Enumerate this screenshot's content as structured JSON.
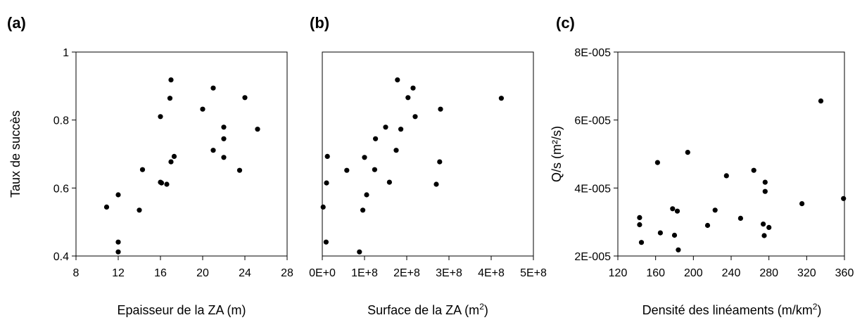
{
  "chart_data": [
    {
      "type": "scatter",
      "panel_label": "(a)",
      "xlabel": "Epaisseur de la ZA (m)",
      "ylabel": "Taux de succès",
      "xlim": [
        8,
        28
      ],
      "ylim": [
        0.4,
        1.0
      ],
      "xticks": [
        "8",
        "12",
        "16",
        "20",
        "24",
        "28"
      ],
      "yticks": [
        "0.4",
        "0.6",
        "0.8",
        "1"
      ],
      "grid": false,
      "points": [
        {
          "x": 10.9,
          "y": 0.544
        },
        {
          "x": 12.0,
          "y": 0.58
        },
        {
          "x": 12.0,
          "y": 0.441
        },
        {
          "x": 12.0,
          "y": 0.412
        },
        {
          "x": 14.0,
          "y": 0.535
        },
        {
          "x": 14.3,
          "y": 0.654
        },
        {
          "x": 16.0,
          "y": 0.81
        },
        {
          "x": 16.0,
          "y": 0.617
        },
        {
          "x": 16.1,
          "y": 0.615
        },
        {
          "x": 16.6,
          "y": 0.611
        },
        {
          "x": 16.9,
          "y": 0.864
        },
        {
          "x": 17.0,
          "y": 0.918
        },
        {
          "x": 17.0,
          "y": 0.677
        },
        {
          "x": 17.3,
          "y": 0.693
        },
        {
          "x": 20.0,
          "y": 0.832
        },
        {
          "x": 21.0,
          "y": 0.894
        },
        {
          "x": 21.0,
          "y": 0.711
        },
        {
          "x": 22.0,
          "y": 0.779
        },
        {
          "x": 22.0,
          "y": 0.745
        },
        {
          "x": 22.0,
          "y": 0.69
        },
        {
          "x": 23.5,
          "y": 0.652
        },
        {
          "x": 24.0,
          "y": 0.866
        },
        {
          "x": 25.2,
          "y": 0.773
        }
      ]
    },
    {
      "type": "scatter",
      "panel_label": "(b)",
      "xlabel": "Surface de la ZA (m",
      "xlabel_sup": "2",
      "xlabel_end": ")",
      "ylabel": "",
      "xlim": [
        0,
        500000000
      ],
      "ylim": [
        0.4,
        1.0
      ],
      "xticks": [
        "0E+0",
        "1E+8",
        "2E+8",
        "3E+8",
        "4E+8",
        "5E+8"
      ],
      "yticks": [],
      "grid": false,
      "points": [
        {
          "x": 2000000,
          "y": 0.544
        },
        {
          "x": 9000000,
          "y": 0.441
        },
        {
          "x": 10000000,
          "y": 0.615
        },
        {
          "x": 12000000,
          "y": 0.693
        },
        {
          "x": 58000000,
          "y": 0.652
        },
        {
          "x": 88000000,
          "y": 0.412
        },
        {
          "x": 96000000,
          "y": 0.535
        },
        {
          "x": 100000000,
          "y": 0.69
        },
        {
          "x": 105000000,
          "y": 0.58
        },
        {
          "x": 124000000,
          "y": 0.654
        },
        {
          "x": 126000000,
          "y": 0.745
        },
        {
          "x": 150000000,
          "y": 0.779
        },
        {
          "x": 159000000,
          "y": 0.617
        },
        {
          "x": 175000000,
          "y": 0.711
        },
        {
          "x": 178000000,
          "y": 0.918
        },
        {
          "x": 186000000,
          "y": 0.773
        },
        {
          "x": 203000000,
          "y": 0.866
        },
        {
          "x": 215000000,
          "y": 0.894
        },
        {
          "x": 220000000,
          "y": 0.81
        },
        {
          "x": 270000000,
          "y": 0.611
        },
        {
          "x": 278000000,
          "y": 0.677
        },
        {
          "x": 280000000,
          "y": 0.832
        },
        {
          "x": 424000000,
          "y": 0.864
        }
      ]
    },
    {
      "type": "scatter",
      "panel_label": "(c)",
      "xlabel": "Densité des linéaments (m/km",
      "xlabel_sup": "2",
      "xlabel_end": ")",
      "ylabel": "Q/s (m²/s)",
      "xlim": [
        120,
        360
      ],
      "ylim": [
        2e-05,
        8e-05
      ],
      "xticks": [
        "120",
        "160",
        "200",
        "240",
        "280",
        "320",
        "360"
      ],
      "yticks": [
        "2E-005",
        "4E-005",
        "6E-005",
        "8E-005"
      ],
      "grid": false,
      "points": [
        {
          "x": 143,
          "y": 3.13e-05
        },
        {
          "x": 143,
          "y": 2.92e-05
        },
        {
          "x": 145,
          "y": 2.4e-05
        },
        {
          "x": 162,
          "y": 4.75e-05
        },
        {
          "x": 165,
          "y": 2.68e-05
        },
        {
          "x": 178,
          "y": 3.39e-05
        },
        {
          "x": 180,
          "y": 2.61e-05
        },
        {
          "x": 183,
          "y": 3.32e-05
        },
        {
          "x": 184,
          "y": 2.18e-05
        },
        {
          "x": 194,
          "y": 5.05e-05
        },
        {
          "x": 215,
          "y": 2.9e-05
        },
        {
          "x": 223,
          "y": 3.35e-05
        },
        {
          "x": 235,
          "y": 4.36e-05
        },
        {
          "x": 250,
          "y": 3.11e-05
        },
        {
          "x": 264,
          "y": 4.52e-05
        },
        {
          "x": 274,
          "y": 2.94e-05
        },
        {
          "x": 275,
          "y": 2.6e-05
        },
        {
          "x": 276,
          "y": 4.17e-05
        },
        {
          "x": 276,
          "y": 3.9e-05
        },
        {
          "x": 280,
          "y": 2.84e-05
        },
        {
          "x": 315,
          "y": 3.54e-05
        },
        {
          "x": 335,
          "y": 6.56e-05
        },
        {
          "x": 359,
          "y": 3.69e-05
        }
      ]
    }
  ]
}
